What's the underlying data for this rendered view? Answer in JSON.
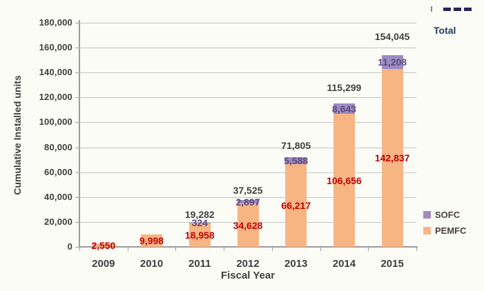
{
  "chart_data": {
    "type": "bar",
    "stacked": true,
    "title": "",
    "xlabel": "Fiscal Year",
    "ylabel": "Cumulative Installed units",
    "categories": [
      "2009",
      "2010",
      "2011",
      "2012",
      "2013",
      "2014",
      "2015"
    ],
    "series": [
      {
        "name": "PEMFC",
        "color": "#F7B584",
        "label_color": "#C00000",
        "values": [
          2550,
          9998,
          18958,
          34628,
          66217,
          106656,
          142837
        ],
        "labels": [
          "2,550",
          "9,998",
          "18,958",
          "34,628",
          "66,217",
          "106,656",
          "142,837"
        ]
      },
      {
        "name": "SOFC",
        "color": "#9C8BC4",
        "label_color": "#5F497A",
        "values": [
          0,
          0,
          324,
          2897,
          5588,
          8643,
          11208
        ],
        "labels": [
          "",
          "",
          "324",
          "2,897",
          "5,588",
          "8,643",
          "11,208"
        ]
      }
    ],
    "totals": {
      "values": [
        2550,
        9998,
        19282,
        37525,
        71805,
        115299,
        154045
      ],
      "labels": [
        "",
        "",
        "19,282",
        "37,525",
        "71,805",
        "115,299",
        "154,045"
      ],
      "label_color": "#3F3F3F"
    },
    "ylim": [
      0,
      180000
    ],
    "yticks": {
      "values": [
        0,
        20000,
        40000,
        60000,
        80000,
        100000,
        120000,
        140000,
        160000,
        180000
      ],
      "labels": [
        "0",
        "20,000",
        "40,000",
        "60,000",
        "80,000",
        "100,000",
        "120,000",
        "140,000",
        "160,000",
        "180,000"
      ]
    },
    "grid": true,
    "legend_position": "right",
    "legend": {
      "items": [
        {
          "label": "SOFC",
          "color": "#9C8BC4"
        },
        {
          "label": "PEMFC",
          "color": "#F7B584"
        }
      ]
    },
    "total_legend": {
      "label": "Total",
      "text_color": "#1F3864",
      "dash_color": "#2E2457"
    }
  }
}
